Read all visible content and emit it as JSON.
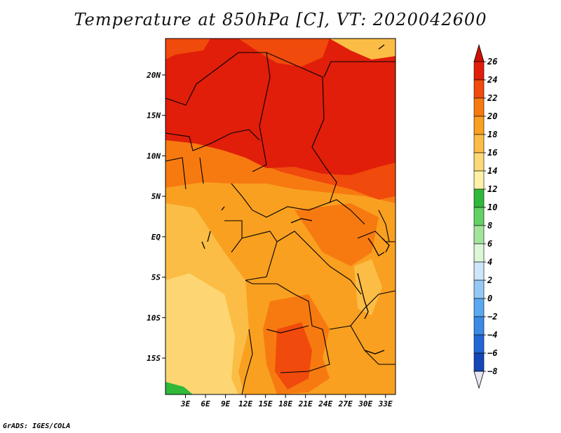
{
  "title": "Temperature at 850hPa [C], VT: 2020042600",
  "credit": "GrADS: IGES/COLA",
  "chart_data": {
    "type": "filled-contour-map",
    "variable": "Temperature at 850hPa",
    "units": "C",
    "valid_time": "2020042600",
    "lon_range": [
      0,
      34.5
    ],
    "lat_range": [
      -19.5,
      24.5
    ],
    "xticks": [
      {
        "value": 3,
        "label": "3E"
      },
      {
        "value": 6,
        "label": "6E"
      },
      {
        "value": 9,
        "label": "9E"
      },
      {
        "value": 12,
        "label": "12E"
      },
      {
        "value": 15,
        "label": "15E"
      },
      {
        "value": 18,
        "label": "18E"
      },
      {
        "value": 21,
        "label": "21E"
      },
      {
        "value": 24,
        "label": "24E"
      },
      {
        "value": 27,
        "label": "27E"
      },
      {
        "value": 30,
        "label": "30E"
      },
      {
        "value": 33,
        "label": "33E"
      }
    ],
    "yticks": [
      {
        "value": 20,
        "label": "20N"
      },
      {
        "value": 15,
        "label": "15N"
      },
      {
        "value": 10,
        "label": "10N"
      },
      {
        "value": 5,
        "label": "5N"
      },
      {
        "value": 0,
        "label": "EQ"
      },
      {
        "value": -5,
        "label": "5S"
      },
      {
        "value": -10,
        "label": "10S"
      },
      {
        "value": -15,
        "label": "15S"
      }
    ],
    "colorbar": {
      "levels": [
        26,
        24,
        22,
        20,
        18,
        16,
        14,
        12,
        10,
        8,
        6,
        4,
        2,
        0,
        -2,
        -4,
        -6,
        -8
      ],
      "labels": [
        "26",
        "24",
        "22",
        "20",
        "18",
        "16",
        "14",
        "12",
        "10",
        "8",
        "6",
        "4",
        "2",
        "0",
        "−2",
        "−4",
        "−6",
        "−8"
      ],
      "colors": [
        "#e01e0a",
        "#f04a0c",
        "#f77a10",
        "#f9a020",
        "#fbbd45",
        "#fdd878",
        "#fff1a6",
        "#2fb83a",
        "#63d163",
        "#a2e59a",
        "#dcf6d7",
        "#cde6fa",
        "#95c9f5",
        "#5aa8ef",
        "#3a8ae6",
        "#2266d6",
        "#1446b8",
        "#0a2488"
      ],
      "top_arrow_color": "#cc1006",
      "bottom_arrow_color": "#e8e6f3"
    },
    "regions": [
      {
        "name": "sahara-hot-core",
        "temp_bin": "24-26",
        "color": "#e01e0a"
      },
      {
        "name": "sahel-band",
        "temp_bin": "22-24",
        "color": "#f04a0c"
      },
      {
        "name": "central-africa",
        "temp_bin": "18-22",
        "color": "#f9a020"
      },
      {
        "name": "kalahari-hot",
        "temp_bin": "22-24",
        "color": "#f04a0c"
      },
      {
        "name": "southwest-cool",
        "temp_bin": "14-18",
        "color": "#fdd878"
      },
      {
        "name": "southwest-corner-green",
        "temp_bin": "10-14",
        "color": "#2fb83a"
      }
    ]
  }
}
